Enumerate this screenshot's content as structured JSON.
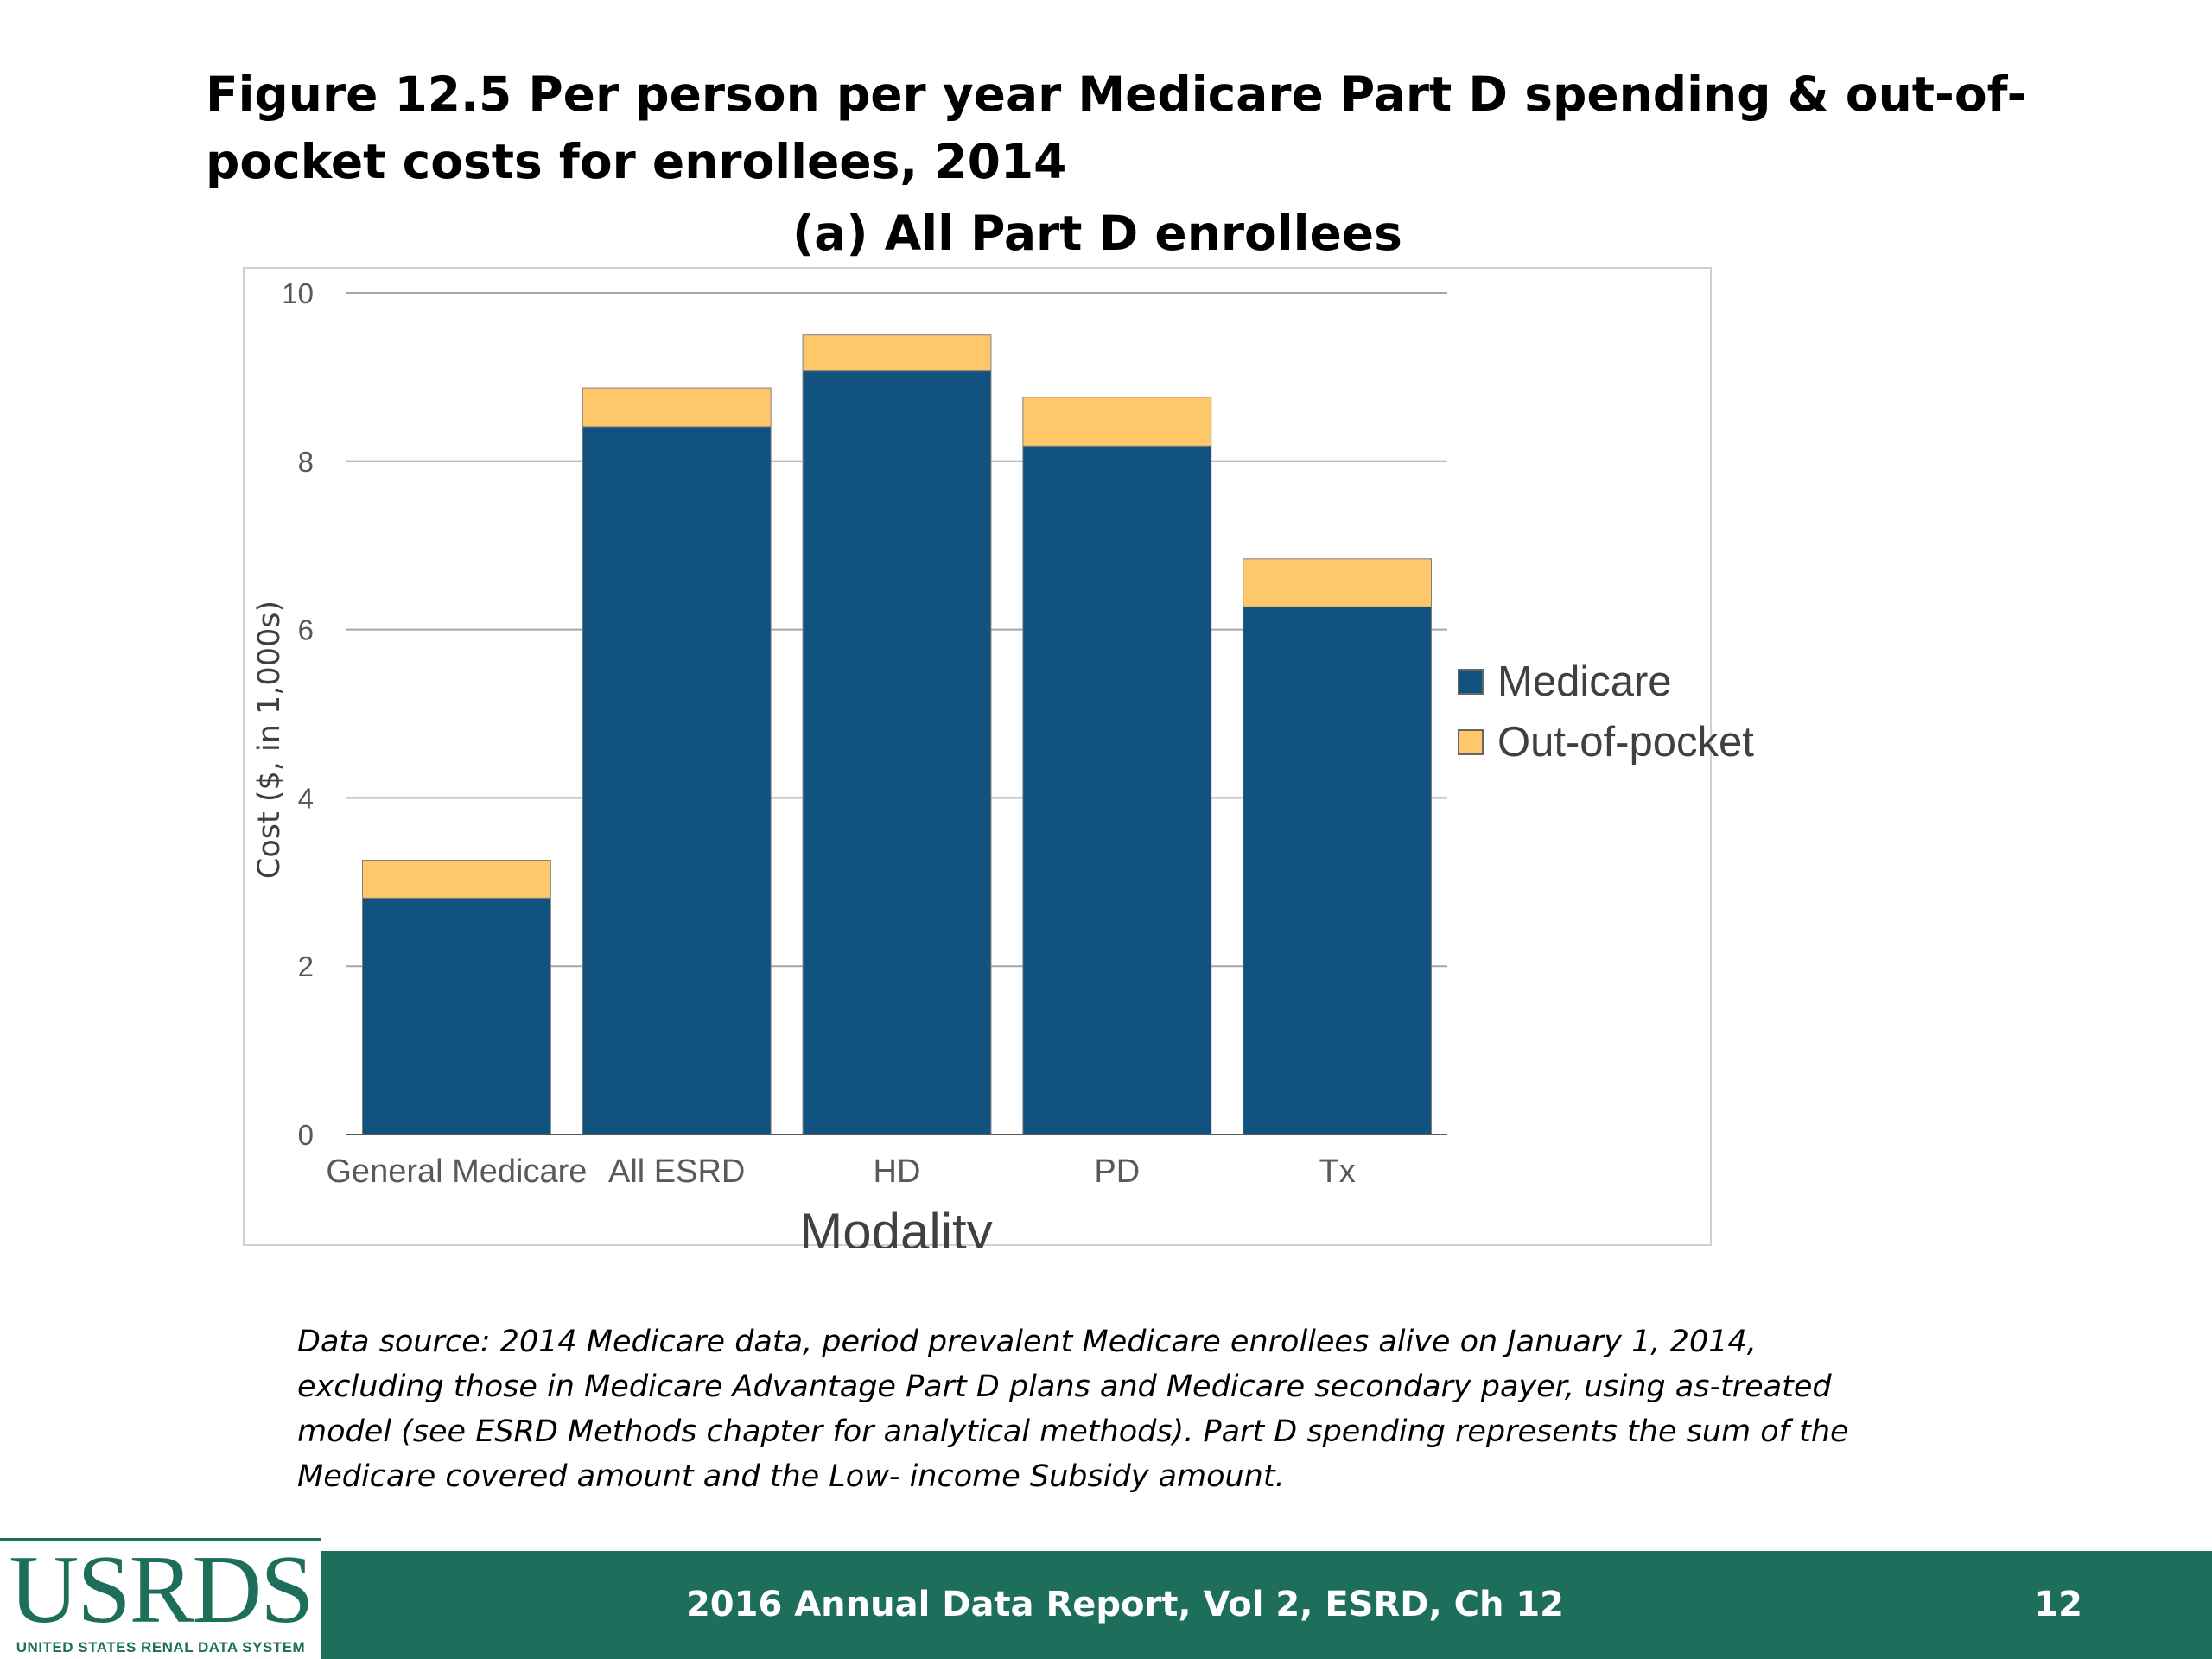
{
  "figure_title": "Figure 12.5 Per person per year Medicare Part D spending & out-of-pocket costs for enrollees, 2014",
  "panel_title": "(a) All Part D enrollees",
  "chart_data": {
    "type": "bar",
    "stacked": true,
    "categories": [
      "General Medicare",
      "All ESRD",
      "HD",
      "PD",
      "Tx"
    ],
    "series": [
      {
        "name": "Medicare",
        "color": "#11527e",
        "values": [
          2.81,
          8.41,
          9.08,
          8.18,
          6.27
        ]
      },
      {
        "name": "Out-of-pocket",
        "color": "#fdc76a",
        "values": [
          0.45,
          0.46,
          0.42,
          0.58,
          0.57
        ]
      }
    ],
    "title": "(a) All Part D enrollees",
    "xlabel": "Modality",
    "ylabel": "Cost ($, in 1,000s)",
    "ylim": [
      0,
      10
    ],
    "yticks": [
      0,
      2,
      4,
      6,
      8,
      10
    ],
    "grid": true,
    "legend_position": "right"
  },
  "source_note": "Data source: 2014 Medicare data, period prevalent Medicare enrollees alive on January 1, 2014, excluding those in Medicare Advantage Part D plans and Medicare secondary payer, using as-treated model (see ESRD Methods chapter for analytical methods). Part D spending represents the sum of the Medicare covered amount and the Low- income Subsidy amount.",
  "footer": {
    "report": "2016 Annual Data Report, Vol 2, ESRD, Ch 12",
    "page_number": "12"
  },
  "logo": {
    "text": "USRDS",
    "subtext": "UNITED STATES RENAL DATA SYSTEM"
  }
}
